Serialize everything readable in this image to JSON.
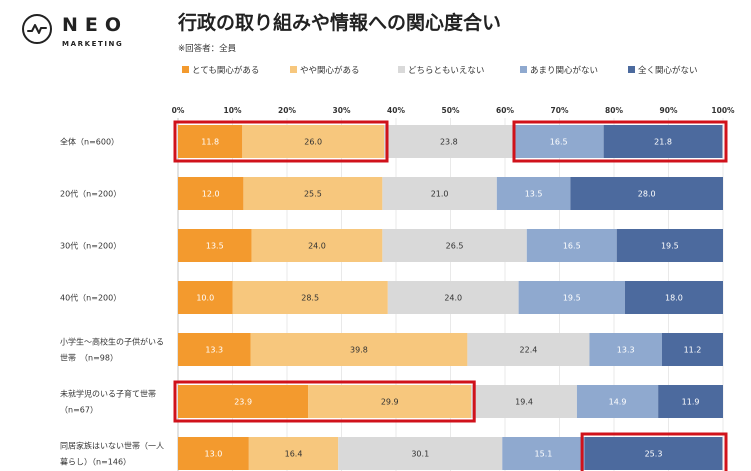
{
  "brand": {
    "name": "NEO",
    "sub": "MARKETING"
  },
  "title": "行政の取り組みや情報への関心度合い",
  "note": "※回答者：全員",
  "chart_data": {
    "type": "bar",
    "orientation": "horizontal",
    "stacked": "percent",
    "x_ticks": [
      "0%",
      "10%",
      "20%",
      "30%",
      "40%",
      "50%",
      "60%",
      "70%",
      "80%",
      "90%",
      "100%"
    ],
    "xlim": [
      0,
      100
    ],
    "grid": true,
    "legend_position": "top",
    "categories": [
      [
        "全体（n=600）"
      ],
      [
        "20代（n=200）"
      ],
      [
        "30代（n=200）"
      ],
      [
        "40代（n=200）"
      ],
      [
        "小学生～高校生の子供がいる",
        "世帯　（n=98）"
      ],
      [
        "未就学児のいる子育て世帯",
        "（n=67）"
      ],
      [
        "同居家族はいない世帯（一人",
        "暮らし）（n=146）"
      ]
    ],
    "series": [
      {
        "name": "とても関心がある",
        "color": "#F39A2E",
        "label_color": "#ffffff",
        "values": [
          11.8,
          12.0,
          13.5,
          10.0,
          13.3,
          23.9,
          13.0
        ]
      },
      {
        "name": "やや関心がある",
        "color": "#F7C77D",
        "label_color": "#333333",
        "values": [
          26.0,
          25.5,
          24.0,
          28.5,
          39.8,
          29.9,
          16.4
        ]
      },
      {
        "name": "どちらともいえない",
        "color": "#D9D9D9",
        "label_color": "#333333",
        "values": [
          23.8,
          21.0,
          26.5,
          24.0,
          22.4,
          19.4,
          30.1
        ]
      },
      {
        "name": "あまり関心がない",
        "color": "#8FA9CF",
        "label_color": "#ffffff",
        "values": [
          16.5,
          13.5,
          16.5,
          19.5,
          13.3,
          14.9,
          15.1
        ]
      },
      {
        "name": "全く関心がない",
        "color": "#4C6A9E",
        "label_color": "#ffffff",
        "values": [
          21.8,
          28.0,
          19.5,
          18.0,
          11.2,
          11.9,
          25.3
        ]
      }
    ],
    "highlights": [
      {
        "row": 0,
        "from": 0,
        "to": 37.8
      },
      {
        "row": 0,
        "from": 62.2,
        "to": 100
      },
      {
        "row": 5,
        "from": 0,
        "to": 53.8
      },
      {
        "row": 6,
        "from": 74.7,
        "to": 100
      }
    ],
    "highlight_color": "#D0121B"
  }
}
